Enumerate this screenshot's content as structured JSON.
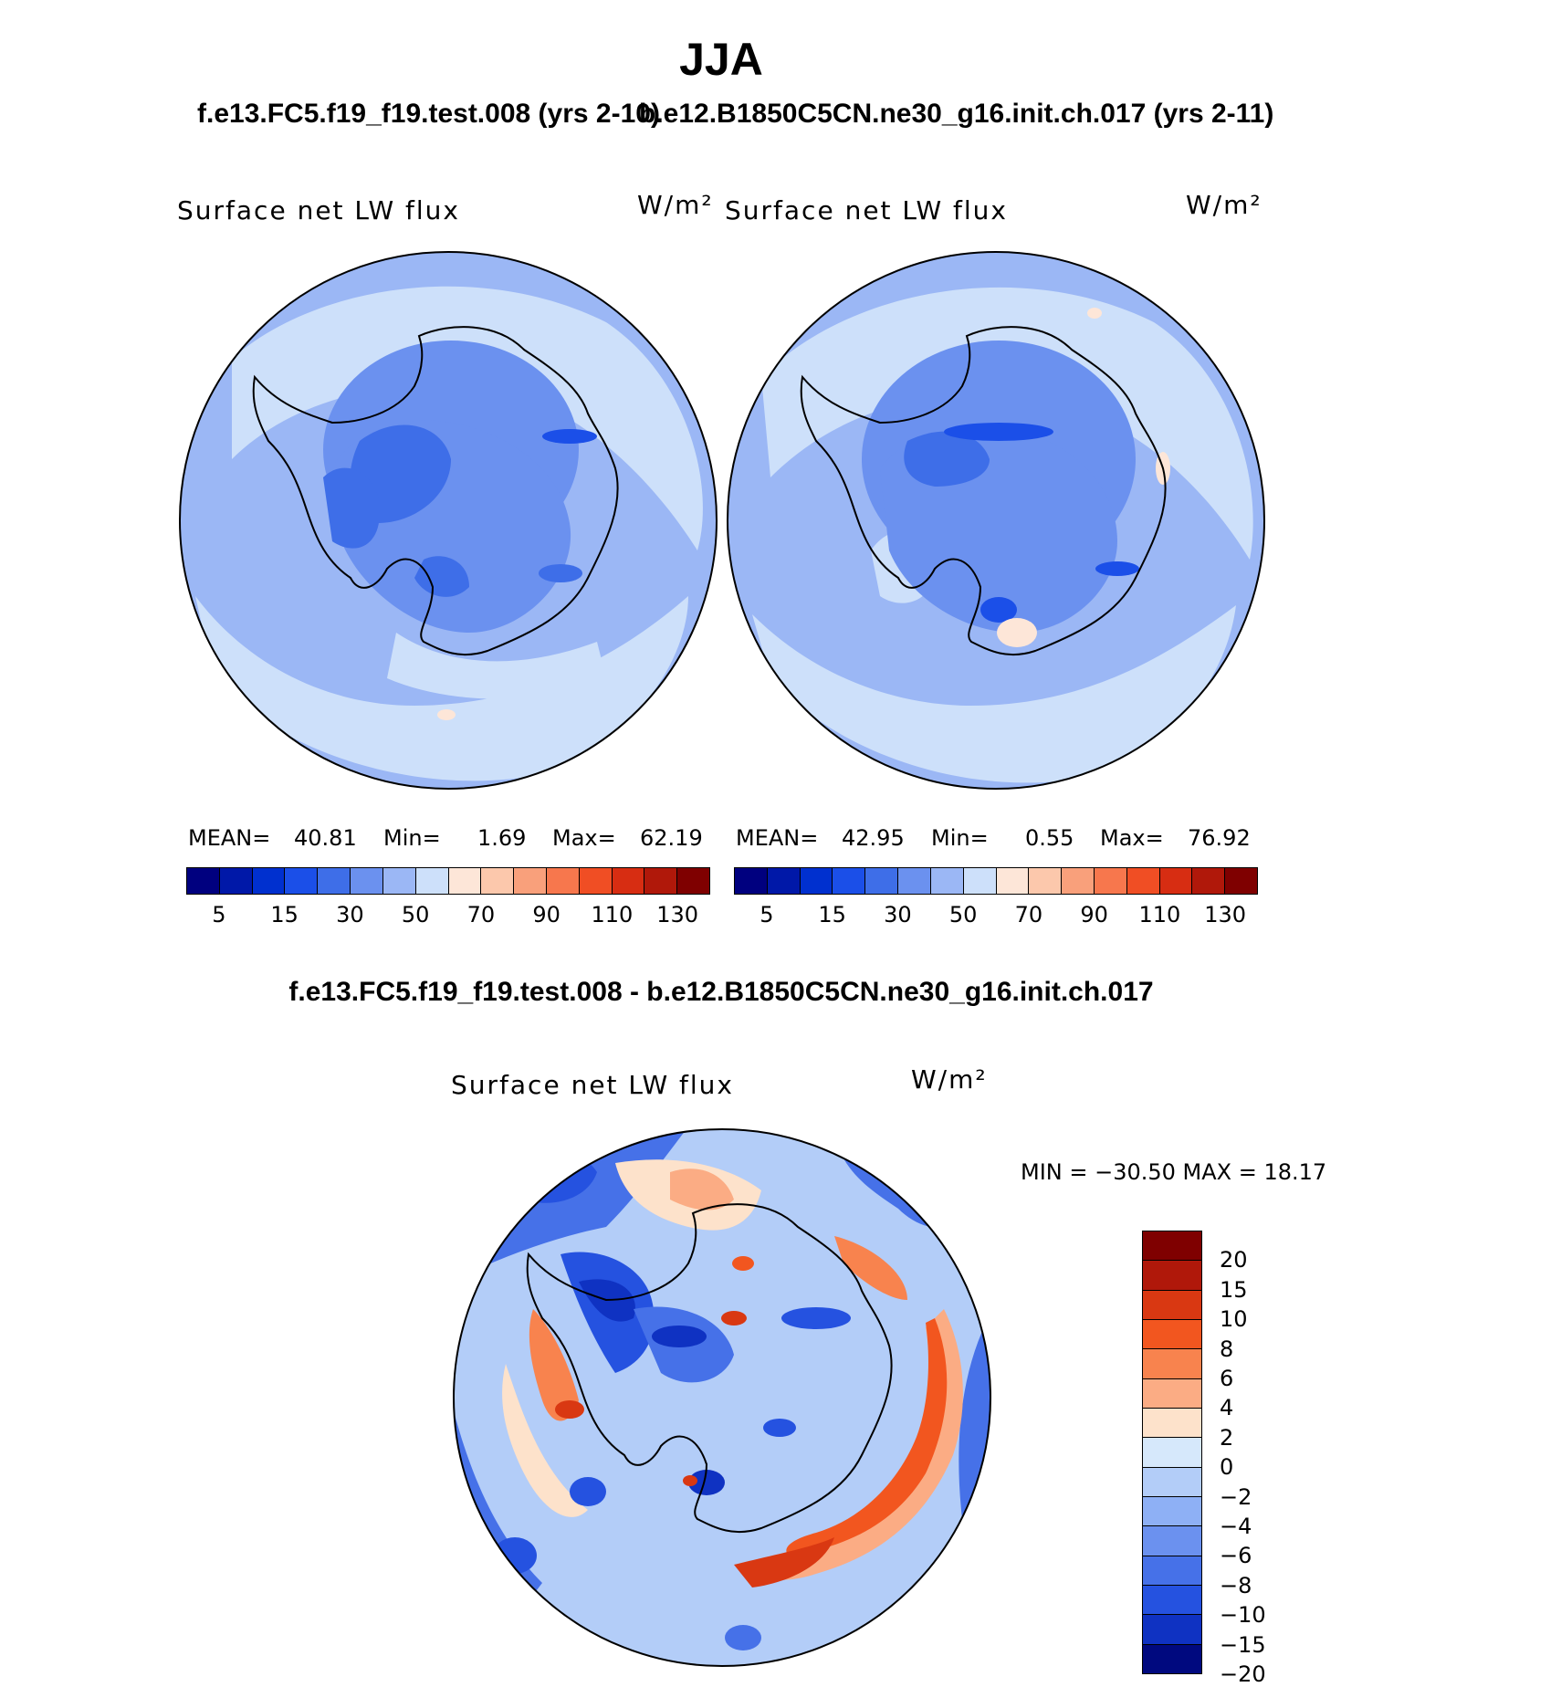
{
  "season": "JJA",
  "case1": "f.e13.FC5.f19_f19.test.008 (yrs 2-10)",
  "case2": "b.e12.B1850C5CN.ne30_g16.init.ch.017 (yrs 2-11)",
  "diff_title": "f.e13.FC5.f19_f19.test.008 - b.e12.B1850C5CN.ne30_g16.init.ch.017",
  "variable": "Surface net LW flux",
  "units": "W/m²",
  "panel1": {
    "mean_label": "MEAN=",
    "mean": "40.81",
    "min_label": "Min=",
    "min": "1.69",
    "max_label": "Max=",
    "max": "62.19"
  },
  "panel2": {
    "mean_label": "MEAN=",
    "mean": "42.95",
    "min_label": "Min=",
    "min": "0.55",
    "max_label": "Max=",
    "max": "76.92"
  },
  "diff_stats": "MIN = −30.50 MAX =   18.17",
  "abs_colorbar": {
    "colors": [
      "#00007f",
      "#0018a8",
      "#0030cf",
      "#1b4fe8",
      "#3e6ee8",
      "#6b91ef",
      "#9bb7f5",
      "#cde0fa",
      "#fde6d8",
      "#fcc8ac",
      "#f9a07b",
      "#f7774d",
      "#f04e24",
      "#d72d12",
      "#b0180a",
      "#7f0000"
    ],
    "labels": [
      "5",
      "15",
      "30",
      "50",
      "70",
      "90",
      "110",
      "130"
    ]
  },
  "diff_colorbar": {
    "colors": [
      "#7f0000",
      "#b0180a",
      "#d93812",
      "#f2561f",
      "#f8834e",
      "#fbac84",
      "#fde2cb",
      "#d6e8fb",
      "#b3cdf8",
      "#8eb0f5",
      "#6b91ef",
      "#4671e8",
      "#2552e0",
      "#0f32c2",
      "#00097f"
    ],
    "labels": [
      "20",
      "15",
      "10",
      "8",
      "6",
      "4",
      "2",
      "0",
      "−2",
      "−4",
      "−6",
      "−8",
      "−10",
      "−15",
      "−20"
    ]
  }
}
